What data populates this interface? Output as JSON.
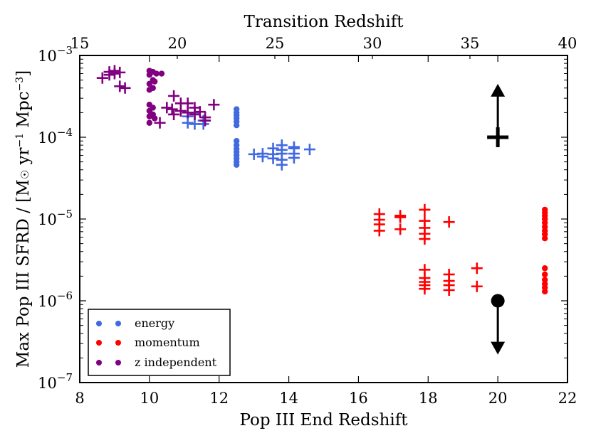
{
  "chart_data": {
    "type": "scatter",
    "title": "",
    "xlabel": "Pop III End Redshift",
    "ylabel": "Max Pop III SFRD / [M",
    "ylabel_sun": "☉",
    "ylabel_mid": " yr",
    "ylabel_exp1": "−1",
    "ylabel_mpc": " Mpc",
    "ylabel_exp2": "−3",
    "ylabel_close": "]",
    "x2label": "Transition Redshift",
    "xlim": [
      8,
      22
    ],
    "ylim": [
      1e-07,
      0.001
    ],
    "yscale": "log",
    "x2lim": [
      15,
      40
    ],
    "xticks": [
      8,
      10,
      12,
      14,
      16,
      18,
      20,
      22
    ],
    "x2ticks": [
      15,
      20,
      25,
      30,
      35,
      40
    ],
    "yticks": [
      {
        "value": 0.001,
        "base": "10",
        "exp": "−3"
      },
      {
        "value": 0.0001,
        "base": "10",
        "exp": "−4"
      },
      {
        "value": 1e-05,
        "base": "10",
        "exp": "−5"
      },
      {
        "value": 1e-06,
        "base": "10",
        "exp": "−6"
      },
      {
        "value": 1e-07,
        "base": "10",
        "exp": "−7"
      }
    ],
    "legend": {
      "location": "lower-left",
      "entries": [
        {
          "label": "energy",
          "color": "#4169e1"
        },
        {
          "label": "momentum",
          "color": "#ff0000"
        },
        {
          "label": "z independent",
          "color": "#800080"
        }
      ]
    },
    "series": [
      {
        "name": "energy",
        "color": "#4169e1",
        "marker": "circle",
        "points": [
          [
            12.5,
            0.00022
          ],
          [
            12.5,
            0.0002
          ],
          [
            12.5,
            0.000185
          ],
          [
            12.5,
            0.00017
          ],
          [
            12.5,
            0.000155
          ],
          [
            12.5,
            0.00014
          ],
          [
            12.5,
            9e-05
          ],
          [
            12.5,
            8e-05
          ],
          [
            12.5,
            7.2e-05
          ],
          [
            12.5,
            6.6e-05
          ],
          [
            12.5,
            6e-05
          ],
          [
            12.5,
            5.5e-05
          ],
          [
            12.5,
            5e-05
          ],
          [
            12.5,
            4.6e-05
          ]
        ]
      },
      {
        "name": "energy",
        "color": "#4169e1",
        "marker": "plus",
        "points": [
          [
            11.1,
            0.00018
          ],
          [
            11.1,
            0.00015
          ],
          [
            11.3,
            0.0002
          ],
          [
            11.3,
            0.000145
          ],
          [
            11.55,
            0.00016
          ],
          [
            11.55,
            0.000145
          ],
          [
            13.0,
            6.2e-05
          ],
          [
            13.25,
            6.3e-05
          ],
          [
            13.25,
            5.8e-05
          ],
          [
            13.55,
            7.3e-05
          ],
          [
            13.55,
            6.2e-05
          ],
          [
            13.55,
            5.5e-05
          ],
          [
            13.8,
            8e-05
          ],
          [
            13.8,
            7e-05
          ],
          [
            13.8,
            6.3e-05
          ],
          [
            13.8,
            5.3e-05
          ],
          [
            13.8,
            4.6e-05
          ],
          [
            14.15,
            7.6e-05
          ],
          [
            14.15,
            7.3e-05
          ],
          [
            14.15,
            6.3e-05
          ],
          [
            14.15,
            5.6e-05
          ],
          [
            14.6,
            7.1e-05
          ]
        ]
      },
      {
        "name": "momentum",
        "color": "#ff0000",
        "marker": "circle",
        "points": [
          [
            21.35,
            1.3e-05
          ],
          [
            21.35,
            1.2e-05
          ],
          [
            21.35,
            1.1e-05
          ],
          [
            21.35,
            1e-05
          ],
          [
            21.35,
            9e-06
          ],
          [
            21.35,
            8e-06
          ],
          [
            21.35,
            7.2e-06
          ],
          [
            21.35,
            6.5e-06
          ],
          [
            21.35,
            5.8e-06
          ],
          [
            21.35,
            2.5e-06
          ],
          [
            21.35,
            2.1e-06
          ],
          [
            21.35,
            1.8e-06
          ],
          [
            21.35,
            1.6e-06
          ],
          [
            21.35,
            1.45e-06
          ],
          [
            21.35,
            1.3e-06
          ]
        ]
      },
      {
        "name": "momentum",
        "color": "#ff0000",
        "marker": "plus",
        "points": [
          [
            16.6,
            1.15e-05
          ],
          [
            16.6,
            9.8e-06
          ],
          [
            16.6,
            8.6e-06
          ],
          [
            16.6,
            7.2e-06
          ],
          [
            17.2,
            1.1e-05
          ],
          [
            17.2,
            1.05e-05
          ],
          [
            17.2,
            7.5e-06
          ],
          [
            17.9,
            1.3e-05
          ],
          [
            17.9,
            9.5e-06
          ],
          [
            17.9,
            7.8e-06
          ],
          [
            17.9,
            6.6e-06
          ],
          [
            17.9,
            5.7e-06
          ],
          [
            18.6,
            9.2e-06
          ],
          [
            17.9,
            2.4e-06
          ],
          [
            17.9,
            1.9e-06
          ],
          [
            17.9,
            1.7e-06
          ],
          [
            17.9,
            1.55e-06
          ],
          [
            17.9,
            1.4e-06
          ],
          [
            18.6,
            2.1e-06
          ],
          [
            18.6,
            1.75e-06
          ],
          [
            18.6,
            1.55e-06
          ],
          [
            18.6,
            1.35e-06
          ],
          [
            19.4,
            2.5e-06
          ],
          [
            19.4,
            1.5e-06
          ]
        ]
      },
      {
        "name": "z independent",
        "color": "#800080",
        "marker": "circle",
        "points": [
          [
            10.0,
            0.00065
          ],
          [
            10.1,
            0.00063
          ],
          [
            10.2,
            0.0006
          ],
          [
            10.35,
            0.0006
          ],
          [
            10.0,
            0.00058
          ],
          [
            10.1,
            0.0005
          ],
          [
            10.0,
            0.00045
          ],
          [
            10.1,
            0.0004
          ],
          [
            10.0,
            0.00038
          ],
          [
            10.15,
            0.00048
          ],
          [
            10.0,
            0.00025
          ],
          [
            10.1,
            0.00023
          ],
          [
            10.0,
            0.00021
          ],
          [
            10.1,
            0.00019
          ],
          [
            10.0,
            0.00018
          ],
          [
            10.15,
            0.00017
          ],
          [
            10.0,
            0.00015
          ]
        ]
      },
      {
        "name": "z independent",
        "color": "#800080",
        "marker": "plus",
        "points": [
          [
            8.65,
            0.00053
          ],
          [
            8.85,
            0.00063
          ],
          [
            8.85,
            0.00058
          ],
          [
            9.0,
            0.00065
          ],
          [
            9.0,
            0.0006
          ],
          [
            9.15,
            0.00062
          ],
          [
            9.15,
            0.00042
          ],
          [
            9.3,
            0.0004
          ],
          [
            10.3,
            0.00015
          ],
          [
            10.5,
            0.00023
          ],
          [
            10.65,
            0.00022
          ],
          [
            10.7,
            0.00032
          ],
          [
            10.7,
            0.00019
          ],
          [
            10.9,
            0.00026
          ],
          [
            10.9,
            0.00021
          ],
          [
            11.1,
            0.00026
          ],
          [
            11.1,
            0.0002
          ],
          [
            11.3,
            0.00023
          ],
          [
            11.3,
            0.00019
          ],
          [
            11.45,
            0.000205
          ],
          [
            11.6,
            0.000175
          ],
          [
            11.6,
            0.00016
          ],
          [
            11.85,
            0.00025
          ]
        ]
      }
    ],
    "markers": [
      {
        "type": "plus",
        "x": 20.0,
        "y": 0.0001,
        "color": "#000000"
      },
      {
        "type": "circle",
        "x": 20.0,
        "y": 1e-06,
        "color": "#000000"
      }
    ],
    "arrows": [
      {
        "x": 20.0,
        "from": 0.0001,
        "to": 0.00045,
        "direction": "up",
        "color": "#000000"
      },
      {
        "x": 20.0,
        "from": 1e-06,
        "to": 2.2e-07,
        "direction": "down",
        "color": "#000000"
      }
    ]
  }
}
